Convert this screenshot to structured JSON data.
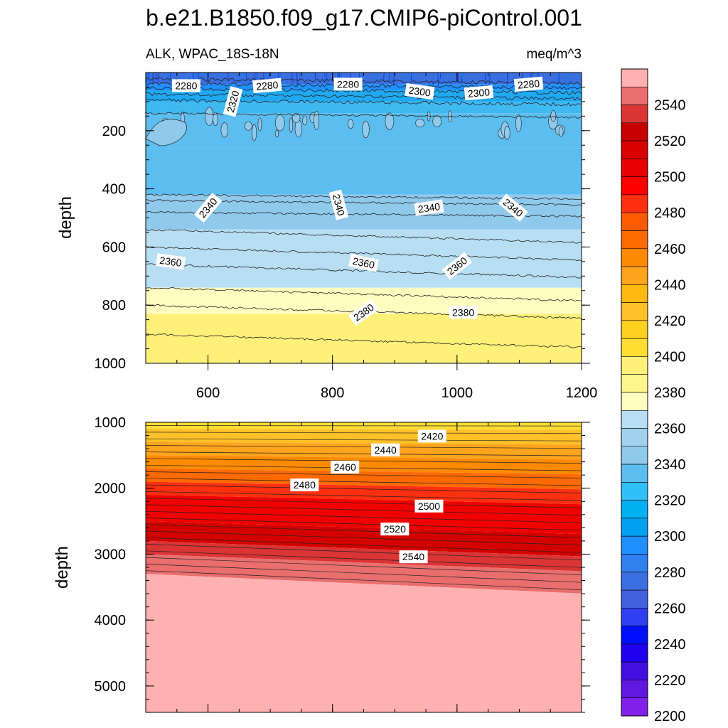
{
  "title": "b.e21.B1850.f09_g17.CMIP6-piControl.001",
  "chart_data": [
    {
      "type": "contour",
      "panel": "top",
      "subtitle_left": "ALK, WPAC_18S-18N",
      "subtitle_right": "meq/m^3",
      "xlabel": "",
      "ylabel": "depth",
      "xlim": [
        500,
        1200
      ],
      "ylim": [
        1000,
        0
      ],
      "y_reversed": true,
      "xticks": [
        600,
        800,
        1000,
        1200
      ],
      "yticks": [
        200,
        400,
        600,
        800,
        1000
      ],
      "bands": [
        {
          "top": 0,
          "bottom": 40,
          "level": 2260,
          "color": "#3b6fe0"
        },
        {
          "top": 40,
          "bottom": 60,
          "level": 2280,
          "color": "#1e90ff"
        },
        {
          "top": 60,
          "bottom": 100,
          "level": 2300,
          "color": "#20a8f0"
        },
        {
          "top": 100,
          "bottom": 140,
          "level": 2320,
          "color": "#40b8f0"
        },
        {
          "top": 140,
          "bottom": 260,
          "level": 2340,
          "color": "#5bbdf0"
        },
        {
          "top": 260,
          "bottom": 420,
          "level": 2340,
          "color": "#5bbdf0"
        },
        {
          "top": 420,
          "bottom": 540,
          "level": 2340,
          "color": "#8fc9ec"
        },
        {
          "top": 540,
          "bottom": 740,
          "level": 2360,
          "color": "#b7def2"
        },
        {
          "top": 740,
          "bottom": 830,
          "level": 2380,
          "color": "#fffcc0"
        },
        {
          "top": 830,
          "bottom": 1000,
          "level": 2380,
          "color": "#fff07a"
        }
      ],
      "contour_labels": [
        {
          "text": "2280",
          "x": 565,
          "y": 45,
          "angle": 0
        },
        {
          "text": "2320",
          "x": 640,
          "y": 100,
          "angle": -75
        },
        {
          "text": "2280",
          "x": 695,
          "y": 45,
          "angle": -5
        },
        {
          "text": "2280",
          "x": 825,
          "y": 40,
          "angle": 0
        },
        {
          "text": "2300",
          "x": 940,
          "y": 65,
          "angle": 8
        },
        {
          "text": "2300",
          "x": 1035,
          "y": 70,
          "angle": -5
        },
        {
          "text": "2280",
          "x": 1115,
          "y": 40,
          "angle": -5
        },
        {
          "text": "2340",
          "x": 600,
          "y": 465,
          "angle": -50
        },
        {
          "text": "2340",
          "x": 810,
          "y": 455,
          "angle": 75
        },
        {
          "text": "2340",
          "x": 955,
          "y": 465,
          "angle": -8
        },
        {
          "text": "2340",
          "x": 1090,
          "y": 465,
          "angle": 40
        },
        {
          "text": "2360",
          "x": 540,
          "y": 650,
          "angle": 8
        },
        {
          "text": "2360",
          "x": 850,
          "y": 655,
          "angle": 12
        },
        {
          "text": "2360",
          "x": 1000,
          "y": 665,
          "angle": -38
        },
        {
          "text": "2380",
          "x": 850,
          "y": 825,
          "angle": -35
        },
        {
          "text": "2380",
          "x": 1010,
          "y": 825,
          "angle": 0
        }
      ]
    },
    {
      "type": "contour",
      "panel": "bottom",
      "xlabel": "",
      "ylabel": "depth",
      "xlim": [
        500,
        1200
      ],
      "ylim": [
        5400,
        1000
      ],
      "y_reversed": true,
      "yticks": [
        1000,
        2000,
        3000,
        4000,
        5000
      ],
      "bands": [
        {
          "top": 1000,
          "bottom": 1100,
          "level": 2400,
          "color": "#ffdd33"
        },
        {
          "top": 1100,
          "bottom": 1300,
          "level": 2420,
          "color": "#ffc028"
        },
        {
          "top": 1300,
          "bottom": 1500,
          "level": 2440,
          "color": "#ffa41c"
        },
        {
          "top": 1500,
          "bottom": 1700,
          "level": 2460,
          "color": "#ff8a00"
        },
        {
          "top": 1700,
          "bottom": 1900,
          "level": 2470,
          "color": "#ff6a00"
        },
        {
          "top": 1900,
          "bottom": 2100,
          "level": 2480,
          "color": "#ff3010"
        },
        {
          "top": 2100,
          "bottom": 2500,
          "level": 2500,
          "color": "#f00000"
        },
        {
          "top": 2500,
          "bottom": 2800,
          "level": 2520,
          "color": "#d40000"
        },
        {
          "top": 2800,
          "bottom": 3000,
          "level": 2540,
          "color": "#da3434"
        },
        {
          "top": 3000,
          "bottom": 3300,
          "level": 2550,
          "color": "#ea6e6e"
        },
        {
          "top": 3300,
          "bottom": 5400,
          "level": 2560,
          "color": "#ffb1b1"
        }
      ],
      "contour_labels": [
        {
          "text": "2420",
          "x": 960,
          "y": 1210,
          "angle": 0
        },
        {
          "text": "2440",
          "x": 885,
          "y": 1420,
          "angle": 0
        },
        {
          "text": "2460",
          "x": 820,
          "y": 1680,
          "angle": 0
        },
        {
          "text": "2480",
          "x": 755,
          "y": 1950,
          "angle": 0
        },
        {
          "text": "2500",
          "x": 955,
          "y": 2270,
          "angle": 0
        },
        {
          "text": "2520",
          "x": 900,
          "y": 2620,
          "angle": 0
        },
        {
          "text": "2540",
          "x": 930,
          "y": 3040,
          "angle": 0
        }
      ]
    }
  ],
  "colorbar": {
    "labels": [
      "2540",
      "2520",
      "2500",
      "2480",
      "2460",
      "2440",
      "2420",
      "2400",
      "2380",
      "2360",
      "2340",
      "2320",
      "2300",
      "2280",
      "2260",
      "2240",
      "2220",
      "2200"
    ],
    "colors": [
      "#ffb1b1",
      "#ea6e6e",
      "#da3434",
      "#c80000",
      "#d80000",
      "#e80000",
      "#ff0000",
      "#ff3010",
      "#ff5a00",
      "#ff6a00",
      "#ff8a00",
      "#ffa41c",
      "#ffb810",
      "#ffc028",
      "#ffd020",
      "#ffdd33",
      "#fff07a",
      "#fff58a",
      "#fffcc0",
      "#b7def2",
      "#a0d2ee",
      "#8fc9ec",
      "#5bbdf0",
      "#30c0f8",
      "#00b0f0",
      "#00a0f0",
      "#1e90ff",
      "#3080f0",
      "#3b6fe0",
      "#4060e0",
      "#3040f0",
      "#0010ff",
      "#2000f0",
      "#4010e0",
      "#6018e0",
      "#8020e8"
    ]
  }
}
